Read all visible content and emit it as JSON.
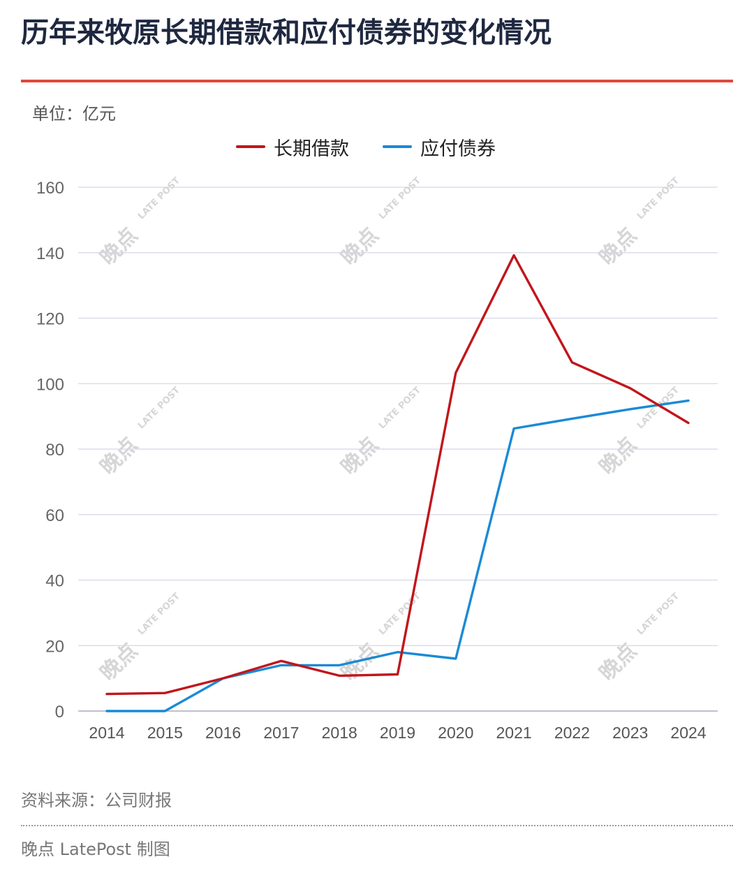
{
  "title": "历年来牧原长期借款和应付债券的变化情况",
  "unit_label": "单位：亿元",
  "source": "资料来源：公司财报",
  "credit": "晚点 LatePost 制图",
  "watermark": {
    "text": "晚点",
    "sub": "LATE POST"
  },
  "colors": {
    "title_rule": "#e0483c",
    "grid": "#d4d8e6",
    "axis_text": "#666666"
  },
  "chart_data": {
    "type": "line",
    "title": "历年来牧原长期借款和应付债券的变化情况",
    "xlabel": "",
    "ylabel": "单位：亿元",
    "x": [
      "2014",
      "2015",
      "2016",
      "2017",
      "2018",
      "2019",
      "2020",
      "2021",
      "2022",
      "2023",
      "2024"
    ],
    "ylim": [
      0,
      160
    ],
    "yticks": [
      0,
      20,
      40,
      60,
      80,
      100,
      120,
      140,
      160
    ],
    "grid": true,
    "legend_position": "top-center",
    "series": [
      {
        "name": "长期借款",
        "color": "#c0161c",
        "values": [
          5.2,
          5.5,
          10.0,
          15.3,
          10.8,
          11.2,
          103.3,
          139.2,
          106.5,
          98.6,
          88.0
        ]
      },
      {
        "name": "应付债券",
        "color": "#1a8ad6",
        "values": [
          0,
          0,
          10.0,
          14.0,
          14.0,
          18.0,
          16.0,
          86.3,
          89.3,
          92.2,
          94.8
        ]
      }
    ]
  }
}
